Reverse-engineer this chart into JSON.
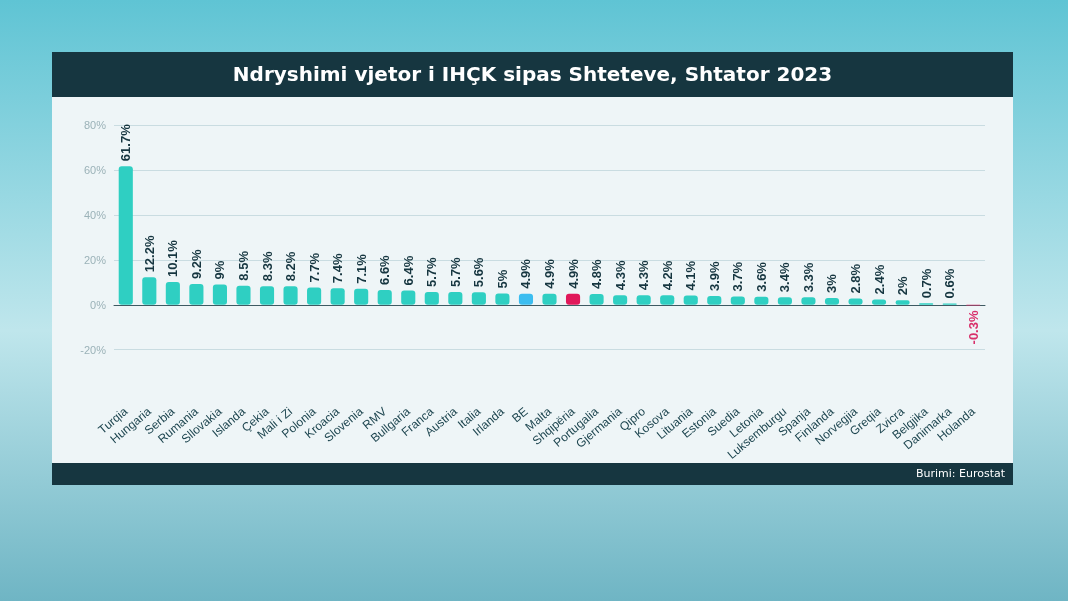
{
  "chart_data": {
    "type": "bar",
    "title": "Ndryshimi vjetor i IHÇK sipas Shteteve, Shtator 2023",
    "categories": [
      "Turqia",
      "Hungaria",
      "Serbia",
      "Rumania",
      "Sllovakia",
      "Islanda",
      "Çekia",
      "Mali i Zi",
      "Polonia",
      "Kroacia",
      "Slovenia",
      "RMV",
      "Bullgaria",
      "Franca",
      "Austria",
      "Italia",
      "Irlanda",
      "BE",
      "Malta",
      "Shqipëria",
      "Portugalia",
      "Gjermania",
      "Qipro",
      "Kosova",
      "Lituania",
      "Estonia",
      "Suedia",
      "Letonia",
      "Luksemburgu",
      "Spanja",
      "Finlanda",
      "Norvegjia",
      "Greqia",
      "Zvicra",
      "Belgjika",
      "Danimarka",
      "Holanda"
    ],
    "values": [
      61.7,
      12.2,
      10.1,
      9.2,
      9,
      8.5,
      8.3,
      8.2,
      7.7,
      7.4,
      7.1,
      6.6,
      6.4,
      5.7,
      5.7,
      5.6,
      5,
      4.9,
      4.9,
      4.9,
      4.8,
      4.3,
      4.3,
      4.2,
      4.1,
      3.9,
      3.7,
      3.6,
      3.4,
      3.3,
      3,
      2.8,
      2.4,
      2,
      0.7,
      0.6,
      -0.3
    ],
    "value_labels": [
      "61.7%",
      "12.2%",
      "10.1%",
      "9.2%",
      "9%",
      "8.5%",
      "8.3%",
      "8.2%",
      "7.7%",
      "7.4%",
      "7.1%",
      "6.6%",
      "6.4%",
      "5.7%",
      "5.7%",
      "5.6%",
      "5%",
      "4.9%",
      "4.9%",
      "4.9%",
      "4.8%",
      "4.3%",
      "4.3%",
      "4.2%",
      "4.1%",
      "3.9%",
      "3.7%",
      "3.6%",
      "3.4%",
      "3.3%",
      "3%",
      "2.8%",
      "2.4%",
      "2%",
      "0.7%",
      "0.6%",
      "-0.3%"
    ],
    "colors": [
      "#2fcfc2",
      "#2fcfc2",
      "#2fcfc2",
      "#2fcfc2",
      "#2fcfc2",
      "#2fcfc2",
      "#2fcfc2",
      "#2fcfc2",
      "#2fcfc2",
      "#2fcfc2",
      "#2fcfc2",
      "#2fcfc2",
      "#2fcfc2",
      "#2fcfc2",
      "#2fcfc2",
      "#2fcfc2",
      "#2fcfc2",
      "#3bbdf0",
      "#2fcfc2",
      "#e0185a",
      "#2fcfc2",
      "#2fcfc2",
      "#2fcfc2",
      "#2fcfc2",
      "#2fcfc2",
      "#2fcfc2",
      "#2fcfc2",
      "#2fcfc2",
      "#2fcfc2",
      "#2fcfc2",
      "#2fcfc2",
      "#2fcfc2",
      "#2fcfc2",
      "#2fcfc2",
      "#2fcfc2",
      "#2fcfc2",
      "#d8306a"
    ],
    "ylim": [
      -20,
      80
    ],
    "yticks": [
      {
        "value": -20,
        "label": "-20%"
      },
      {
        "value": 0,
        "label": "0%"
      },
      {
        "value": 20,
        "label": "20%"
      },
      {
        "value": 40,
        "label": "40%"
      },
      {
        "value": 60,
        "label": "60%"
      },
      {
        "value": 80,
        "label": "80%"
      }
    ],
    "grid": "y",
    "annotations": [
      "Burimi: Eurostat"
    ]
  }
}
